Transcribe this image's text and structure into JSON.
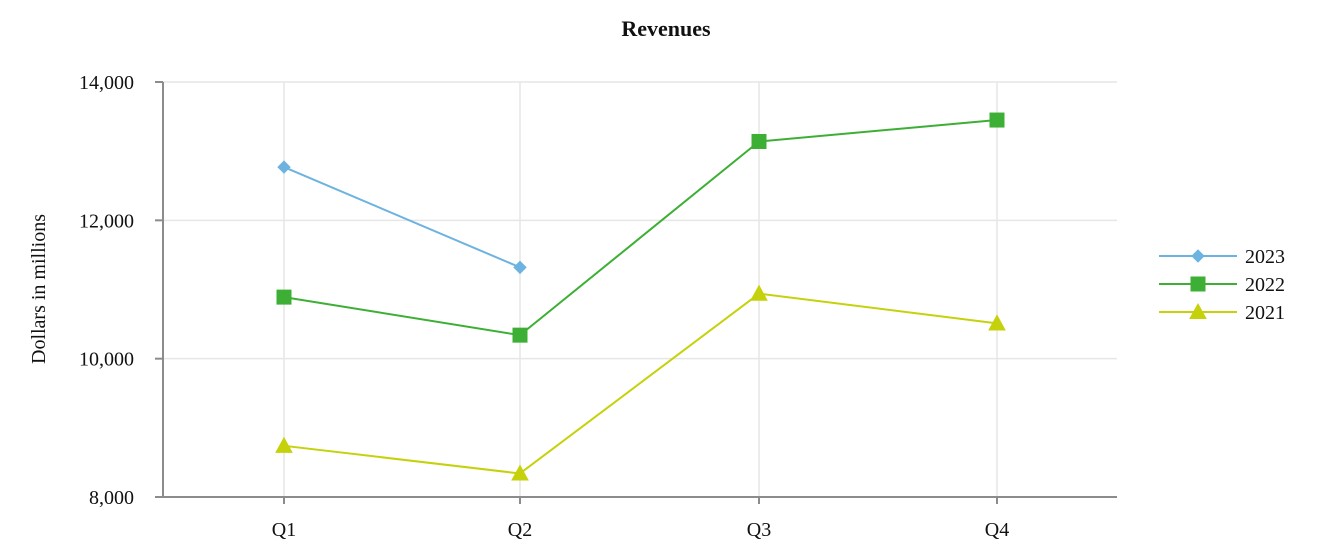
{
  "chart_data": {
    "type": "line",
    "title": "Revenues",
    "xlabel": "",
    "ylabel": "Dollars in millions",
    "categories": [
      "Q1",
      "Q2",
      "Q3",
      "Q4"
    ],
    "ylim": [
      8000,
      14000
    ],
    "yticks": [
      8000,
      10000,
      12000,
      14000
    ],
    "ytick_labels": [
      "8,000",
      "10,000",
      "12,000",
      "14,000"
    ],
    "grid": true,
    "legend_position": "right",
    "series": [
      {
        "name": "2023",
        "values": [
          12770,
          11320,
          null,
          null
        ],
        "color": "#6DB3E0",
        "marker": "diamond"
      },
      {
        "name": "2022",
        "values": [
          10890,
          10340,
          13140,
          13450
        ],
        "color": "#3DAF35",
        "marker": "square"
      },
      {
        "name": "2021",
        "values": [
          8740,
          8340,
          10940,
          10510
        ],
        "color": "#C5D20B",
        "marker": "triangle"
      }
    ]
  }
}
